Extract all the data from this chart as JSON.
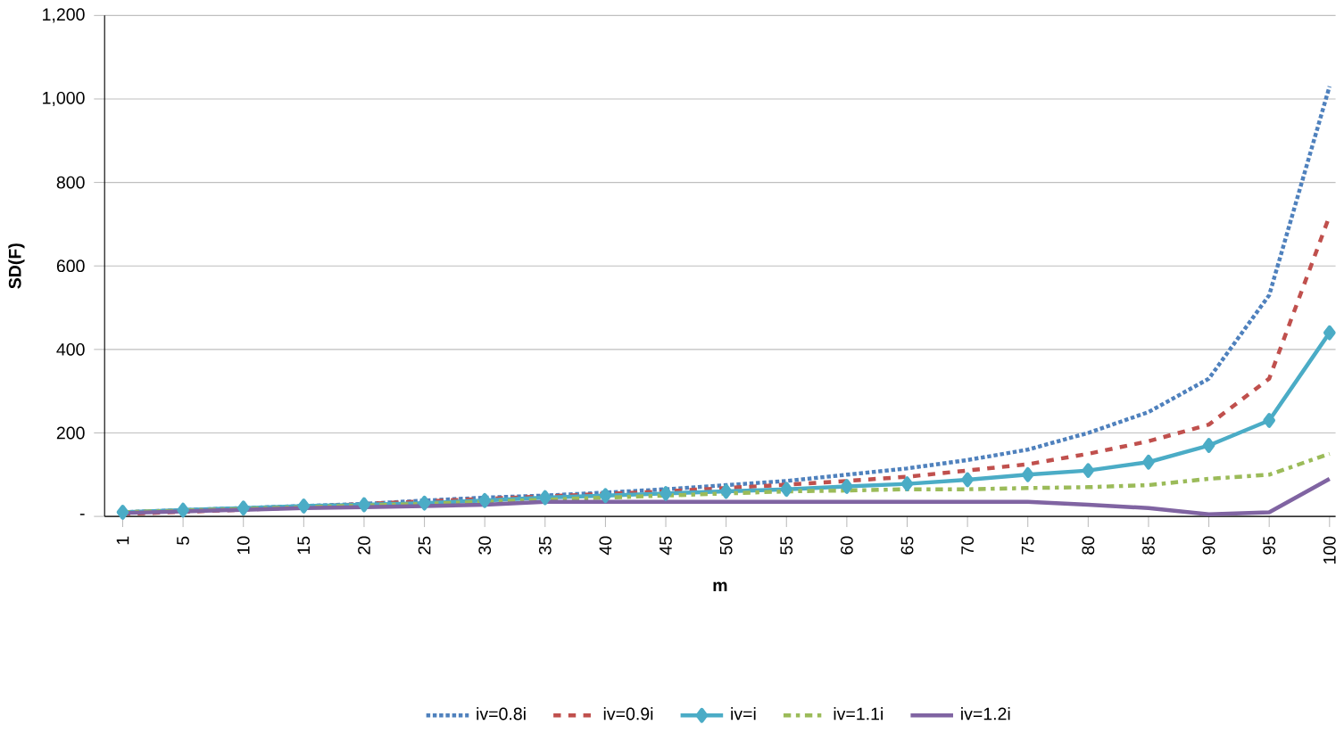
{
  "chart_data": {
    "type": "line",
    "xlabel": "m",
    "ylabel": "SD(F)",
    "categories": [
      "1",
      "5",
      "10",
      "15",
      "20",
      "25",
      "30",
      "35",
      "40",
      "45",
      "50",
      "55",
      "60",
      "65",
      "70",
      "75",
      "80",
      "85",
      "90",
      "95",
      "100"
    ],
    "ylim": [
      0,
      1200
    ],
    "yticks": [
      {
        "value": 0,
        "label": "-"
      },
      {
        "value": 200,
        "label": "200"
      },
      {
        "value": 400,
        "label": "400"
      },
      {
        "value": 600,
        "label": "600"
      },
      {
        "value": 800,
        "label": "800"
      },
      {
        "value": 1000,
        "label": "1,000"
      },
      {
        "value": 1200,
        "label": "1,200"
      }
    ],
    "grid": "y",
    "legend": "bottom",
    "series": [
      {
        "name": "iv=0.8i",
        "color": "#4f81bd",
        "line_style": "dotted",
        "marker": "none",
        "values": [
          10,
          15,
          20,
          25,
          30,
          38,
          45,
          50,
          57,
          65,
          75,
          85,
          100,
          115,
          135,
          160,
          200,
          250,
          330,
          530,
          1030
        ]
      },
      {
        "name": "iv=0.9i",
        "color": "#c0504d",
        "line_style": "dashed",
        "marker": "none",
        "values": [
          6,
          11,
          16,
          22,
          30,
          36,
          42,
          48,
          54,
          60,
          68,
          76,
          85,
          95,
          110,
          125,
          150,
          180,
          220,
          330,
          720
        ]
      },
      {
        "name": "iv=i",
        "color": "#4bacc6",
        "line_style": "solid",
        "marker": "diamond",
        "values": [
          10,
          15,
          20,
          25,
          28,
          32,
          38,
          45,
          50,
          55,
          60,
          65,
          72,
          78,
          88,
          100,
          110,
          130,
          170,
          230,
          440
        ]
      },
      {
        "name": "iv=1.1i",
        "color": "#9bbb59",
        "line_style": "dashdot",
        "marker": "none",
        "values": [
          10,
          14,
          18,
          22,
          26,
          30,
          35,
          40,
          45,
          50,
          55,
          60,
          62,
          65,
          65,
          68,
          70,
          75,
          90,
          100,
          150
        ]
      },
      {
        "name": "iv=1.2i",
        "color": "#8064a2",
        "line_style": "solid",
        "marker": "none",
        "values": [
          8,
          12,
          16,
          20,
          22,
          25,
          28,
          35,
          35,
          35,
          35,
          35,
          35,
          35,
          35,
          35,
          28,
          20,
          5,
          10,
          90
        ]
      }
    ]
  }
}
